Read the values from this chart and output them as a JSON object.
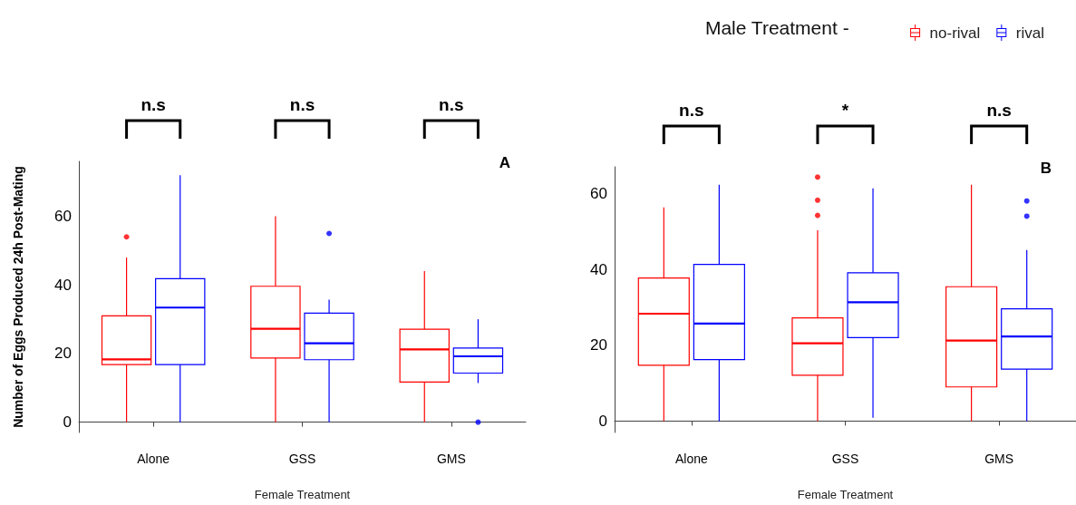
{
  "chart_data": [
    {
      "type": "box",
      "title": "A",
      "xlabel": "Female Treatment",
      "ylabel": "Number of Eggs Produced 24h Post-Mating",
      "categories": [
        "Alone",
        "GSS",
        "GMS"
      ],
      "ylim": [
        -3,
        76
      ],
      "yticks": [
        0,
        20,
        40,
        60
      ],
      "legend": false,
      "grid": false,
      "series": [
        {
          "color": "#ff0000",
          "boxes": [
            {
              "low": 0,
              "q1": 16.8,
              "median": 18.3,
              "q3": 31,
              "high": 48,
              "outliers": [
                54
              ]
            },
            {
              "low": 0,
              "q1": 18.7,
              "median": 27.2,
              "q3": 39.6,
              "high": 60
            },
            {
              "low": 0,
              "q1": 11.7,
              "median": 21.2,
              "q3": 27.1,
              "high": 44
            }
          ]
        },
        {
          "color": "#0000ff",
          "boxes": [
            {
              "low": 0,
              "q1": 16.8,
              "median": 33.4,
              "q3": 41.8,
              "high": 72
            },
            {
              "low": 0,
              "q1": 18.2,
              "median": 23,
              "q3": 31.8,
              "high": 35.7,
              "outliers": [
                55
              ]
            },
            {
              "low": 11.4,
              "q1": 14.3,
              "median": 19.2,
              "q3": 21.6,
              "high": 30,
              "outliers": [
                0
              ]
            }
          ]
        }
      ],
      "annotations": [
        "n.s",
        "n.s",
        "n.s"
      ]
    },
    {
      "type": "box",
      "title": "B",
      "xlabel": "Female Treatment",
      "categories": [
        "Alone",
        "GSS",
        "GMS"
      ],
      "ylim": [
        -3,
        67
      ],
      "yticks": [
        0,
        20,
        40,
        60
      ],
      "legend": "top right",
      "legend_title": "Male Treatment -",
      "grid": false,
      "series": [
        {
          "name": "no-rival",
          "color": "#ff0000",
          "boxes": [
            {
              "low": 0,
              "q1": 14.7,
              "median": 28.3,
              "q3": 37.7,
              "high": 56.3
            },
            {
              "low": 0,
              "q1": 12.1,
              "median": 20.5,
              "q3": 27.2,
              "high": 50.3,
              "outliers": [
                54.2,
                58.2,
                64.3
              ]
            },
            {
              "low": 0,
              "q1": 9,
              "median": 21.2,
              "q3": 35.4,
              "high": 62.3
            }
          ]
        },
        {
          "name": "rival",
          "color": "#0000ff",
          "boxes": [
            {
              "low": 0,
              "q1": 16.2,
              "median": 25.7,
              "q3": 41.3,
              "high": 62.3
            },
            {
              "low": 0.9,
              "q1": 22,
              "median": 31.3,
              "q3": 39.1,
              "high": 61.3
            },
            {
              "low": 0,
              "q1": 13.7,
              "median": 22.3,
              "q3": 29.6,
              "high": 45.1,
              "outliers": [
                54,
                58
              ]
            }
          ]
        }
      ],
      "annotations": [
        "n.s",
        "*",
        "n.s"
      ]
    }
  ]
}
